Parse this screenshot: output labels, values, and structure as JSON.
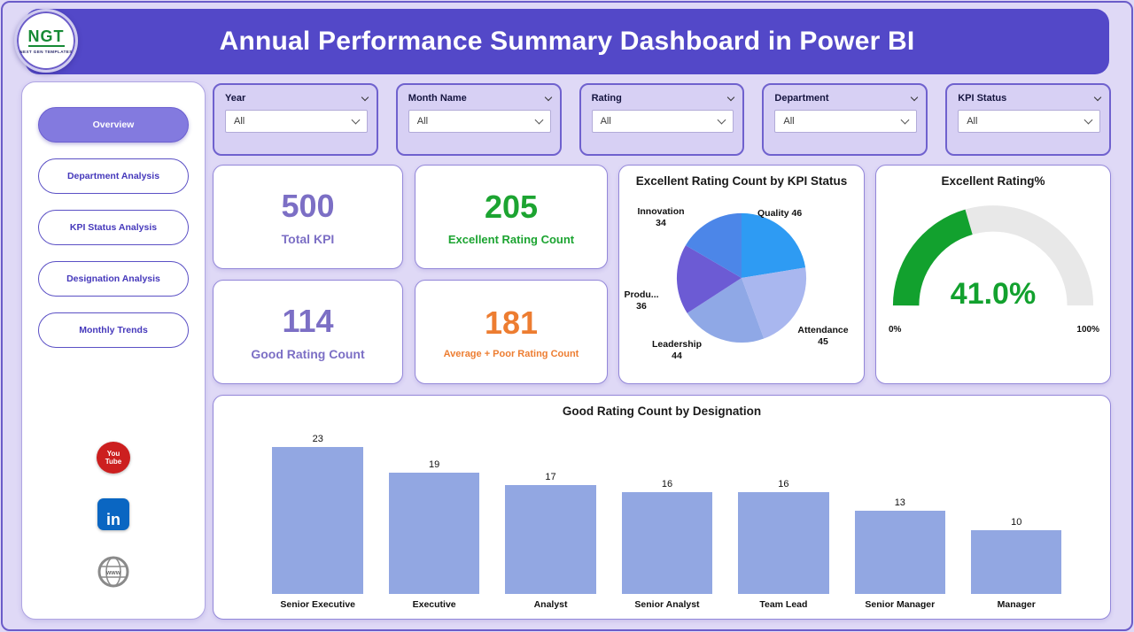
{
  "header": {
    "title": "Annual Performance Summary Dashboard in Power BI",
    "logo": {
      "text": "NGT",
      "subtext": "NEXT GEN TEMPLATES"
    }
  },
  "sidebar": {
    "items": [
      {
        "label": "Overview",
        "active": true
      },
      {
        "label": "Department Analysis",
        "active": false
      },
      {
        "label": "KPI Status Analysis",
        "active": false
      },
      {
        "label": "Designation Analysis",
        "active": false
      },
      {
        "label": "Monthly Trends",
        "active": false
      }
    ],
    "social_icons": [
      "youtube-icon",
      "linkedin-icon",
      "globe-icon"
    ],
    "youtube": {
      "line1": "You",
      "line2": "Tube"
    },
    "linkedin_text": "in",
    "globe_text": "www"
  },
  "filters": [
    {
      "label": "Year",
      "value": "All"
    },
    {
      "label": "Month Name",
      "value": "All"
    },
    {
      "label": "Rating",
      "value": "All"
    },
    {
      "label": "Department",
      "value": "All"
    },
    {
      "label": "KPI Status",
      "value": "All"
    }
  ],
  "kpi_cards": [
    {
      "value": "500",
      "label": "Total KPI",
      "color": "#7C6FC5"
    },
    {
      "value": "205",
      "label": "Excellent Rating Count",
      "color": "#1CA431"
    },
    {
      "value": "114",
      "label": "Good Rating Count",
      "color": "#7C6FC5"
    },
    {
      "value": "181",
      "label": "Average + Poor Rating Count",
      "color": "#ED7D31"
    }
  ],
  "chart_data": [
    {
      "type": "pie",
      "title": "Excellent Rating Count by KPI Status",
      "labels": [
        "Quality",
        "Attendance",
        "Leadership",
        "Produ...",
        "Innovation"
      ],
      "values": [
        46,
        45,
        44,
        36,
        34
      ],
      "colors": [
        "#2E9BF3",
        "#A9B7EF",
        "#8FA8E6",
        "#6C5BD4",
        "#4C86E8"
      ]
    },
    {
      "type": "gauge",
      "title": "Excellent Rating%",
      "value": 41.0,
      "display_value": "41.0%",
      "min_label": "0%",
      "max_label": "100%",
      "arc_color": "#12A12E",
      "track_color": "#E8E8E8"
    },
    {
      "type": "bar",
      "title": "Good Rating Count by Designation",
      "categories": [
        "Senior Executive",
        "Executive",
        "Analyst",
        "Senior Analyst",
        "Team Lead",
        "Senior Manager",
        "Manager"
      ],
      "values": [
        23,
        19,
        17,
        16,
        16,
        13,
        10
      ],
      "bar_color": "#92A7E2",
      "ylim": [
        0,
        23
      ]
    }
  ]
}
